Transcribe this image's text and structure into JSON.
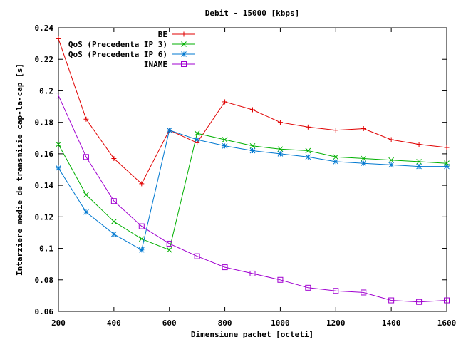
{
  "chart_data": {
    "type": "line",
    "title": "Debit - 15000 [kbps]",
    "xlabel": "Dimensiune pachet [octeti]",
    "ylabel": "Intarziere medie de transmisie cap-la-cap [s]",
    "xlim": [
      200,
      1600
    ],
    "ylim": [
      0.06,
      0.24
    ],
    "xticks": [
      200,
      400,
      600,
      800,
      1000,
      1200,
      1400,
      1600
    ],
    "xtick_labels": [
      "200",
      "400",
      "600",
      "800",
      "1000",
      "1200",
      "1400",
      "1600"
    ],
    "yticks": [
      0.06,
      0.08,
      0.1,
      0.12,
      0.14,
      0.16,
      0.18,
      0.2,
      0.22,
      0.24
    ],
    "ytick_labels": [
      "0.06",
      "0.08",
      "0.1",
      "0.12",
      "0.14",
      "0.16",
      "0.18",
      "0.2",
      "0.22",
      "0.24"
    ],
    "grid": false,
    "legend_position": "top-right",
    "x": [
      200,
      300,
      400,
      500,
      600,
      700,
      800,
      900,
      1000,
      1100,
      1200,
      1300,
      1400,
      1500,
      1600
    ],
    "series": [
      {
        "name": "BE",
        "color": "#e00000",
        "marker": "plus",
        "values": [
          0.233,
          0.182,
          0.157,
          0.141,
          0.175,
          0.167,
          0.193,
          0.188,
          0.18,
          0.177,
          0.175,
          0.176,
          0.169,
          0.166,
          0.164
        ]
      },
      {
        "name": "QoS (Precedenta IP 3)",
        "color": "#00b000",
        "marker": "cross",
        "values": [
          0.166,
          0.134,
          0.117,
          0.106,
          0.099,
          0.173,
          0.169,
          0.165,
          0.163,
          0.162,
          0.158,
          0.157,
          0.156,
          0.155,
          0.154
        ]
      },
      {
        "name": "QoS (Precedenta IP 6)",
        "color": "#0078d0",
        "marker": "star",
        "values": [
          0.151,
          0.123,
          0.109,
          0.099,
          0.175,
          0.169,
          0.165,
          0.162,
          0.16,
          0.158,
          0.155,
          0.154,
          0.153,
          0.152,
          0.152
        ]
      },
      {
        "name": "INAME",
        "color": "#a000d0",
        "marker": "square",
        "values": [
          0.197,
          0.158,
          0.13,
          0.114,
          0.103,
          0.095,
          0.088,
          0.084,
          0.08,
          0.075,
          0.073,
          0.072,
          0.067,
          0.066,
          0.067
        ]
      }
    ]
  }
}
